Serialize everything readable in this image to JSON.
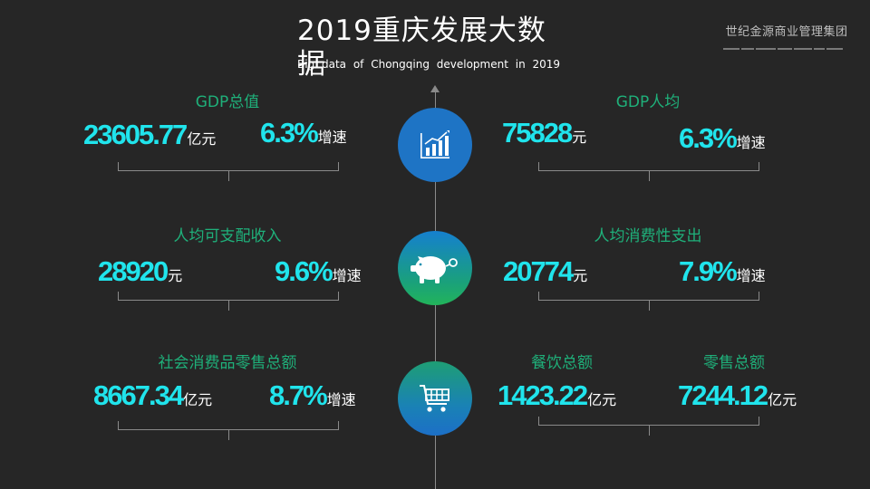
{
  "header": {
    "title": "2019重庆发展大数据",
    "subtitle": "Big data of Chongqing development in 2019",
    "logo_text": "世纪金源商业管理集团"
  },
  "icons": {
    "chart": "bar-chart-growth-icon",
    "piggy": "piggy-bank-icon",
    "cart": "shopping-cart-icon"
  },
  "stats": {
    "gdp_total": {
      "label": "GDP总值",
      "value": "23605.77",
      "unit": "亿元",
      "growth": "6.3%",
      "growth_unit": "增速"
    },
    "gdp_per_capita": {
      "label": "GDP人均",
      "value": "75828",
      "unit": "元",
      "growth": "6.3%",
      "growth_unit": "增速"
    },
    "disposable_income": {
      "label": "人均可支配收入",
      "value": "28920",
      "unit": "元",
      "growth": "9.6%",
      "growth_unit": "增速"
    },
    "consumption_spending": {
      "label": "人均消费性支出",
      "value": "20774",
      "unit": "元",
      "growth": "7.9%",
      "growth_unit": "增速"
    },
    "retail_total": {
      "label": "社会消费品零售总额",
      "value": "8667.34",
      "unit": "亿元",
      "growth": "8.7%",
      "growth_unit": "增速"
    },
    "catering_total": {
      "label": "餐饮总额",
      "value": "1423.22",
      "unit": "亿元"
    },
    "retail_sales_total": {
      "label": "零售总额",
      "value": "7244.12",
      "unit": "亿元"
    }
  },
  "colors": {
    "background": "#262626",
    "label_green": "#1fb07a",
    "value_cyan": "#20e4ec",
    "circle_blue": "#1e74c5"
  }
}
